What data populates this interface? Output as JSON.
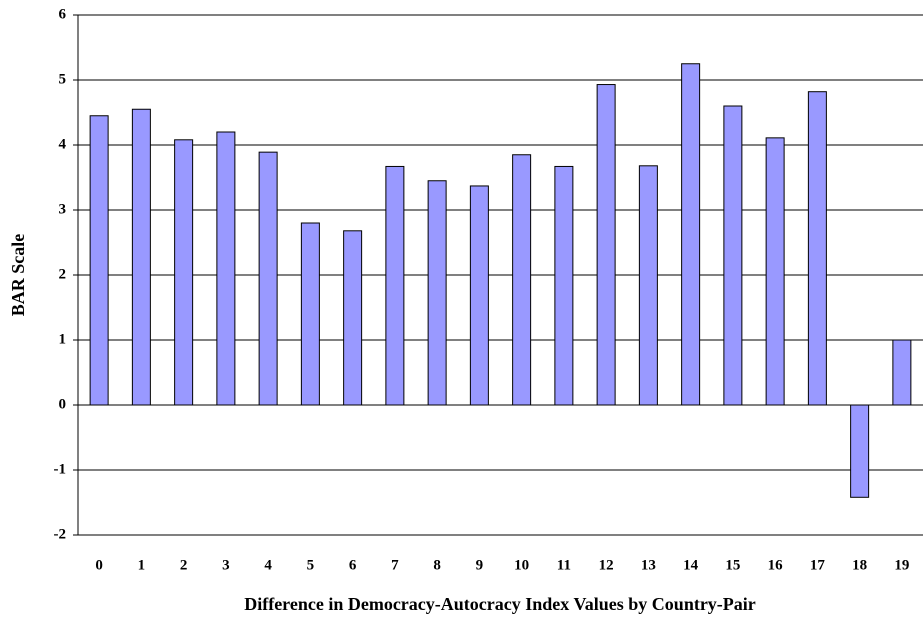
{
  "chart_data": {
    "type": "bar",
    "x_label": "Difference in Democracy-Autocracy Index Values by Country-Pair",
    "y_label": "BAR Scale",
    "categories": [
      "0",
      "1",
      "2",
      "3",
      "4",
      "5",
      "6",
      "7",
      "8",
      "9",
      "10",
      "11",
      "12",
      "13",
      "14",
      "15",
      "16",
      "17",
      "18",
      "19"
    ],
    "values": [
      4.45,
      4.55,
      4.08,
      4.2,
      3.89,
      2.8,
      2.68,
      3.67,
      3.45,
      3.37,
      3.85,
      3.67,
      4.93,
      3.68,
      5.25,
      4.6,
      4.11,
      4.82,
      -1.42,
      1.0
    ],
    "color": "#9999ff",
    "ylim": [
      -2,
      6
    ],
    "yticks": [
      -2,
      -1,
      0,
      1,
      2,
      3,
      4,
      5,
      6
    ],
    "grid": true
  }
}
